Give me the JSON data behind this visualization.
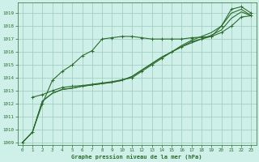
{
  "bg_color": "#cff0e8",
  "grid_color": "#99ccbb",
  "line_color": "#2d6b2d",
  "xlabel": "Graphe pression niveau de la mer (hPa)",
  "xlim": [
    -0.5,
    23.5
  ],
  "ylim": [
    1008.8,
    1019.8
  ],
  "yticks": [
    1009,
    1010,
    1011,
    1012,
    1013,
    1014,
    1015,
    1016,
    1017,
    1018,
    1019
  ],
  "xticks": [
    0,
    1,
    2,
    3,
    4,
    5,
    6,
    7,
    8,
    9,
    10,
    11,
    12,
    13,
    14,
    15,
    16,
    17,
    18,
    19,
    20,
    21,
    22,
    23
  ],
  "series1_x": [
    0,
    1,
    2,
    3,
    4,
    5,
    6,
    7,
    8,
    9,
    10,
    11,
    12,
    13,
    14,
    15,
    16,
    17,
    18,
    19,
    20,
    21,
    22,
    23
  ],
  "series1_y": [
    1009.0,
    1009.8,
    1012.0,
    1013.8,
    1014.5,
    1015.0,
    1015.7,
    1016.1,
    1017.0,
    1017.1,
    1017.2,
    1017.2,
    1017.1,
    1017.0,
    1017.0,
    1017.0,
    1017.0,
    1017.1,
    1017.15,
    1017.2,
    1018.0,
    1019.3,
    1019.5,
    1019.0
  ],
  "series2_x": [
    0,
    1,
    2,
    3,
    4,
    5,
    6,
    7,
    8,
    9,
    10,
    11,
    12,
    13,
    14,
    15,
    16,
    17,
    18,
    19,
    20,
    21,
    22,
    23
  ],
  "series2_y": [
    1009.0,
    1009.8,
    1012.2,
    1012.8,
    1013.1,
    1013.2,
    1013.35,
    1013.45,
    1013.55,
    1013.65,
    1013.8,
    1014.1,
    1014.6,
    1015.1,
    1015.6,
    1016.0,
    1016.4,
    1016.7,
    1017.0,
    1017.3,
    1017.7,
    1018.6,
    1019.1,
    1018.8
  ],
  "series3_x": [
    0,
    1,
    2,
    3,
    4,
    5,
    6,
    7,
    8,
    9,
    10,
    11,
    12,
    13,
    14,
    15,
    16,
    17,
    18,
    19,
    20,
    21,
    22,
    23
  ],
  "series3_y": [
    1009.0,
    1009.8,
    1012.2,
    1012.8,
    1013.1,
    1013.2,
    1013.35,
    1013.45,
    1013.55,
    1013.65,
    1013.8,
    1014.1,
    1014.6,
    1015.1,
    1015.6,
    1016.0,
    1016.5,
    1016.9,
    1017.2,
    1017.5,
    1018.0,
    1019.0,
    1019.3,
    1018.8
  ],
  "series4_x": [
    1,
    2,
    3,
    4,
    5,
    6,
    7,
    8,
    9,
    10,
    11,
    12,
    13,
    14,
    15,
    16,
    17,
    18,
    19,
    20,
    21,
    22,
    23
  ],
  "series4_y": [
    1012.5,
    1012.7,
    1013.0,
    1013.25,
    1013.35,
    1013.4,
    1013.5,
    1013.6,
    1013.7,
    1013.85,
    1014.0,
    1014.5,
    1015.0,
    1015.5,
    1016.0,
    1016.4,
    1016.8,
    1017.0,
    1017.2,
    1017.5,
    1018.0,
    1018.7,
    1018.8
  ]
}
